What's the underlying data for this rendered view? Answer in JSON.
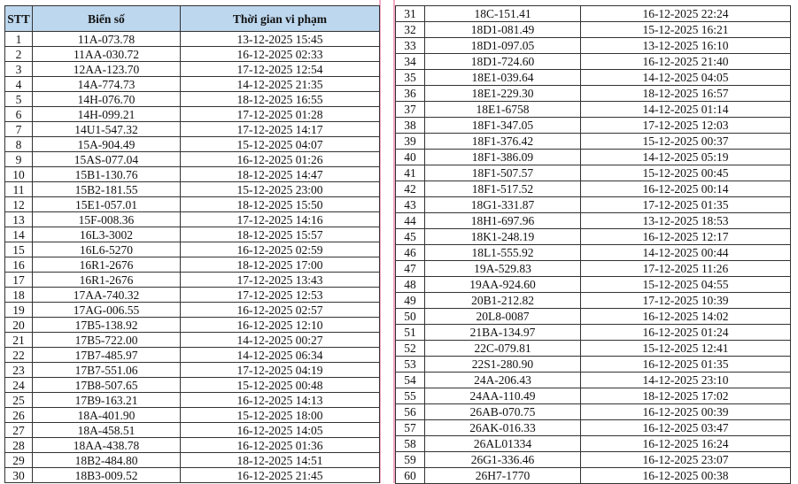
{
  "headers": {
    "stt": "STT",
    "plate": "Biển số",
    "time": "Thời gian vi phạm"
  },
  "colors": {
    "header_bg": "#bdd7ee",
    "page_separator": "#f2a7c3"
  },
  "rows": [
    [
      "1",
      "11A-073.78",
      "13-12-2025 15:45"
    ],
    [
      "2",
      "11AA-030.72",
      "16-12-2025 02:33"
    ],
    [
      "3",
      "12AA-123.70",
      "17-12-2025 12:54"
    ],
    [
      "4",
      "14A-774.73",
      "14-12-2025 21:35"
    ],
    [
      "5",
      "14H-076.70",
      "18-12-2025 16:55"
    ],
    [
      "6",
      "14H-099.21",
      "17-12-2025 01:28"
    ],
    [
      "7",
      "14U1-547.32",
      "17-12-2025 14:17"
    ],
    [
      "8",
      "15A-904.49",
      "15-12-2025 04:07"
    ],
    [
      "9",
      "15AS-077.04",
      "16-12-2025 01:26"
    ],
    [
      "10",
      "15B1-130.76",
      "18-12-2025 14:47"
    ],
    [
      "11",
      "15B2-181.55",
      "15-12-2025 23:00"
    ],
    [
      "12",
      "15E1-057.01",
      "18-12-2025 15:50"
    ],
    [
      "13",
      "15F-008.36",
      "17-12-2025 14:16"
    ],
    [
      "14",
      "16L3-3002",
      "18-12-2025 15:57"
    ],
    [
      "15",
      "16L6-5270",
      "16-12-2025 02:59"
    ],
    [
      "16",
      "16R1-2676",
      "18-12-2025 17:00"
    ],
    [
      "17",
      "16R1-2676",
      "17-12-2025 13:43"
    ],
    [
      "18",
      "17AA-740.32",
      "17-12-2025 12:53"
    ],
    [
      "19",
      "17AG-006.55",
      "16-12-2025 02:57"
    ],
    [
      "20",
      "17B5-138.92",
      "16-12-2025 12:10"
    ],
    [
      "21",
      "17B5-722.00",
      "14-12-2025 00:27"
    ],
    [
      "22",
      "17B7-485.97",
      "14-12-2025 06:34"
    ],
    [
      "23",
      "17B7-551.06",
      "17-12-2025 04:19"
    ],
    [
      "24",
      "17B8-507.65",
      "15-12-2025 00:48"
    ],
    [
      "25",
      "17B9-163.21",
      "16-12-2025 14:13"
    ],
    [
      "26",
      "18A-401.90",
      "15-12-2025 18:00"
    ],
    [
      "27",
      "18A-458.51",
      "16-12-2025 14:05"
    ],
    [
      "28",
      "18AA-438.78",
      "16-12-2025 01:36"
    ],
    [
      "29",
      "18B2-484.80",
      "18-12-2025 14:51"
    ],
    [
      "30",
      "18B3-009.52",
      "16-12-2025 21:45"
    ],
    [
      "31",
      "18C-151.41",
      "16-12-2025 22:24"
    ],
    [
      "32",
      "18D1-081.49",
      "15-12-2025 16:21"
    ],
    [
      "33",
      "18D1-097.05",
      "13-12-2025 16:10"
    ],
    [
      "34",
      "18D1-724.60",
      "16-12-2025 21:40"
    ],
    [
      "35",
      "18E1-039.64",
      "14-12-2025 04:05"
    ],
    [
      "36",
      "18E1-229.30",
      "18-12-2025 16:57"
    ],
    [
      "37",
      "18E1-6758",
      "14-12-2025 01:14"
    ],
    [
      "38",
      "18F1-347.05",
      "17-12-2025 12:03"
    ],
    [
      "39",
      "18F1-376.42",
      "15-12-2025 00:37"
    ],
    [
      "40",
      "18F1-386.09",
      "14-12-2025 05:19"
    ],
    [
      "41",
      "18F1-507.57",
      "15-12-2025 00:45"
    ],
    [
      "42",
      "18F1-517.52",
      "16-12-2025 00:14"
    ],
    [
      "43",
      "18G1-331.87",
      "17-12-2025 01:35"
    ],
    [
      "44",
      "18H1-697.96",
      "13-12-2025 18:53"
    ],
    [
      "45",
      "18K1-248.19",
      "16-12-2025 12:17"
    ],
    [
      "46",
      "18L1-555.92",
      "14-12-2025 00:44"
    ],
    [
      "47",
      "19A-529.83",
      "17-12-2025 11:26"
    ],
    [
      "48",
      "19AA-924.60",
      "15-12-2025 04:55"
    ],
    [
      "49",
      "20B1-212.82",
      "17-12-2025 10:39"
    ],
    [
      "50",
      "20L8-0087",
      "16-12-2025 14:02"
    ],
    [
      "51",
      "21BA-134.97",
      "16-12-2025 01:24"
    ],
    [
      "52",
      "22C-079.81",
      "15-12-2025 12:41"
    ],
    [
      "53",
      "22S1-280.90",
      "16-12-2025 01:35"
    ],
    [
      "54",
      "24A-206.43",
      "14-12-2025 23:10"
    ],
    [
      "55",
      "24AA-110.49",
      "18-12-2025 17:02"
    ],
    [
      "56",
      "26AB-070.75",
      "16-12-2025 00:39"
    ],
    [
      "57",
      "26AK-016.33",
      "16-12-2025 03:47"
    ],
    [
      "58",
      "26AL01334",
      "16-12-2025 16:24"
    ],
    [
      "59",
      "26G1-336.46",
      "16-12-2025 23:07"
    ],
    [
      "60",
      "26H7-1770",
      "16-12-2025 00:38"
    ]
  ]
}
